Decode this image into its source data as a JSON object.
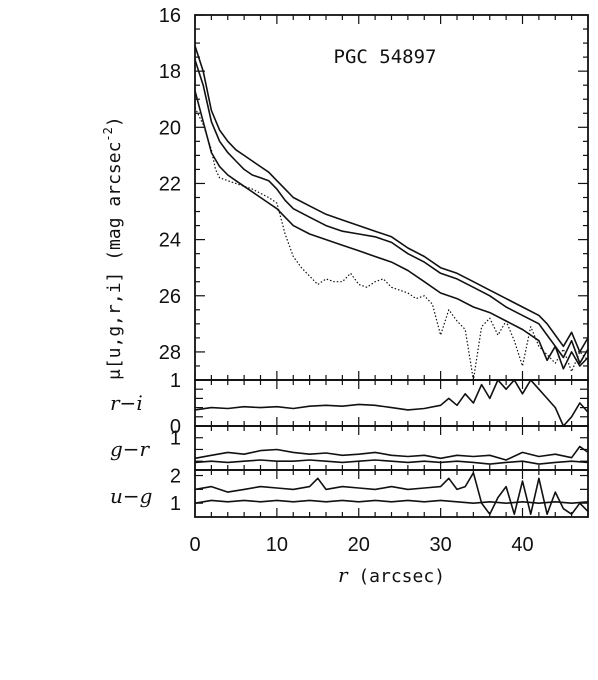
{
  "chart_data": [
    {
      "panel": "surface-brightness",
      "type": "line",
      "title": "PGC 54897",
      "ylabel": "μ[u,g,r,i] (mag arcsec⁻²)",
      "ylabel_main": "μ[u,g,r,i] (mag arcsec",
      "ylabel_sup": "-2",
      "ylabel_close": ")",
      "ylim": [
        29.0,
        16.0
      ],
      "xlim": [
        0,
        48
      ],
      "yticks": [
        "16",
        "18",
        "20",
        "22",
        "24",
        "26",
        "28"
      ],
      "inverted_y": true,
      "series": [
        {
          "style": "dotted",
          "x": [
            0,
            1,
            2,
            2.5,
            3,
            4,
            5,
            7,
            9,
            10,
            11,
            12,
            13,
            14,
            15,
            16,
            17,
            18,
            19,
            20,
            21,
            22,
            23,
            24,
            25,
            26,
            27,
            28,
            29,
            30,
            31,
            32,
            33,
            34,
            35,
            36,
            37,
            38,
            39,
            40,
            41,
            42,
            43,
            44,
            45,
            46,
            47,
            48
          ],
          "y": [
            19.3,
            19.9,
            20.8,
            21.5,
            21.8,
            21.9,
            22.0,
            22.2,
            22.5,
            22.7,
            23.8,
            24.6,
            25.0,
            25.3,
            25.6,
            25.4,
            25.5,
            25.5,
            25.2,
            25.6,
            25.7,
            25.5,
            25.4,
            25.7,
            25.8,
            25.9,
            26.1,
            26.0,
            26.3,
            27.4,
            26.5,
            26.9,
            27.2,
            29.0,
            27.1,
            26.8,
            27.4,
            26.9,
            27.6,
            28.5,
            27.1,
            27.8,
            28.1,
            28.4,
            27.9,
            28.7,
            28.0,
            28.3
          ]
        },
        {
          "style": "solid",
          "x": [
            0,
            1,
            2,
            3,
            4,
            5,
            6,
            7,
            8,
            9,
            10,
            11,
            12,
            14,
            16,
            18,
            20,
            22,
            24,
            26,
            28,
            30,
            32,
            34,
            36,
            38,
            40,
            42,
            43,
            44,
            45,
            46,
            47,
            48
          ],
          "y": [
            18.7,
            19.8,
            20.9,
            21.4,
            21.7,
            21.9,
            22.1,
            22.3,
            22.5,
            22.7,
            22.9,
            23.2,
            23.5,
            23.8,
            24.0,
            24.2,
            24.4,
            24.6,
            24.8,
            25.1,
            25.5,
            25.9,
            26.1,
            26.4,
            26.6,
            26.9,
            27.2,
            27.6,
            28.3,
            27.8,
            28.6,
            28.0,
            28.5,
            28.2
          ]
        },
        {
          "style": "solid",
          "x": [
            0,
            1,
            2,
            3,
            4,
            5,
            6,
            7,
            8,
            9,
            10,
            11,
            12,
            14,
            16,
            18,
            20,
            22,
            24,
            26,
            28,
            30,
            32,
            34,
            36,
            38,
            40,
            42,
            43,
            44,
            45,
            46,
            47,
            48
          ],
          "y": [
            17.6,
            18.5,
            19.8,
            20.5,
            20.9,
            21.2,
            21.5,
            21.7,
            21.8,
            21.9,
            22.2,
            22.6,
            22.9,
            23.2,
            23.5,
            23.7,
            23.8,
            23.9,
            24.1,
            24.5,
            24.8,
            25.2,
            25.4,
            25.7,
            26.0,
            26.4,
            26.7,
            27.0,
            27.4,
            27.8,
            28.2,
            27.6,
            28.4,
            27.9
          ]
        },
        {
          "style": "solid",
          "x": [
            0,
            1,
            2,
            3,
            4,
            5,
            6,
            7,
            8,
            9,
            10,
            11,
            12,
            14,
            16,
            18,
            20,
            22,
            24,
            26,
            28,
            30,
            32,
            34,
            36,
            38,
            40,
            42,
            43,
            44,
            45,
            46,
            47,
            48
          ],
          "y": [
            17.1,
            18.0,
            19.4,
            20.1,
            20.5,
            20.8,
            21.0,
            21.2,
            21.4,
            21.6,
            21.9,
            22.2,
            22.5,
            22.8,
            23.1,
            23.3,
            23.5,
            23.7,
            23.9,
            24.3,
            24.6,
            25.0,
            25.2,
            25.5,
            25.8,
            26.1,
            26.4,
            26.7,
            27.0,
            27.4,
            27.8,
            27.3,
            28.0,
            27.5
          ]
        }
      ]
    },
    {
      "panel": "r-i",
      "type": "line",
      "ylabel": "r−i",
      "ylim": [
        0,
        1
      ],
      "yticks": [
        "1",
        "0"
      ],
      "x": [
        0,
        2,
        4,
        6,
        8,
        10,
        12,
        14,
        16,
        18,
        20,
        22,
        24,
        26,
        28,
        30,
        31,
        32,
        33,
        34,
        35,
        36,
        37,
        38,
        39,
        40,
        41,
        42,
        43,
        44,
        45,
        46,
        47,
        48
      ],
      "y": [
        0.35,
        0.4,
        0.38,
        0.42,
        0.4,
        0.42,
        0.38,
        0.43,
        0.45,
        0.43,
        0.47,
        0.45,
        0.4,
        0.35,
        0.38,
        0.45,
        0.6,
        0.45,
        0.7,
        0.5,
        0.9,
        0.6,
        1.0,
        0.8,
        1.0,
        0.7,
        1.0,
        0.8,
        0.6,
        0.4,
        -0.1,
        0.2,
        0.5,
        0.3
      ]
    },
    {
      "panel": "g-r",
      "type": "line",
      "ylabel": "g−r",
      "ylim": [
        0.45,
        1.2
      ],
      "yticks": [
        "1"
      ],
      "series": [
        {
          "x": [
            0,
            2,
            4,
            6,
            8,
            10,
            12,
            14,
            16,
            18,
            20,
            22,
            24,
            26,
            28,
            30,
            32,
            34,
            36,
            38,
            40,
            42,
            44,
            46,
            47,
            48
          ],
          "y": [
            0.65,
            0.7,
            0.75,
            0.72,
            0.78,
            0.8,
            0.75,
            0.72,
            0.74,
            0.7,
            0.72,
            0.75,
            0.7,
            0.68,
            0.7,
            0.65,
            0.7,
            0.68,
            0.7,
            0.62,
            0.75,
            0.68,
            0.72,
            0.66,
            0.85,
            0.75
          ]
        },
        {
          "x": [
            0,
            2,
            4,
            6,
            8,
            10,
            12,
            14,
            16,
            18,
            20,
            22,
            24,
            26,
            28,
            30,
            32,
            34,
            36,
            38,
            40,
            42,
            44,
            46,
            48
          ],
          "y": [
            0.58,
            0.6,
            0.58,
            0.6,
            0.62,
            0.6,
            0.6,
            0.62,
            0.6,
            0.58,
            0.6,
            0.62,
            0.6,
            0.58,
            0.6,
            0.58,
            0.6,
            0.58,
            0.55,
            0.58,
            0.6,
            0.55,
            0.58,
            0.6,
            0.58
          ]
        }
      ]
    },
    {
      "panel": "u-g",
      "type": "line",
      "ylabel": "u−g",
      "ylim": [
        0.5,
        2.2
      ],
      "yticks": [
        "2",
        "1"
      ],
      "series": [
        {
          "x": [
            0,
            2,
            4,
            6,
            8,
            10,
            12,
            14,
            15,
            16,
            18,
            20,
            22,
            24,
            26,
            28,
            30,
            31,
            32,
            33,
            34,
            35,
            36,
            37,
            38,
            39,
            40,
            41,
            42,
            43,
            44,
            45,
            46,
            47,
            48
          ],
          "y": [
            1.5,
            1.6,
            1.4,
            1.5,
            1.6,
            1.55,
            1.5,
            1.6,
            1.9,
            1.5,
            1.6,
            1.55,
            1.5,
            1.6,
            1.5,
            1.55,
            1.6,
            1.9,
            1.5,
            1.6,
            2.1,
            1.0,
            0.6,
            1.2,
            1.6,
            0.6,
            1.8,
            0.6,
            1.9,
            0.6,
            1.4,
            0.8,
            0.6,
            1.0,
            0.7
          ]
        },
        {
          "x": [
            0,
            2,
            4,
            6,
            8,
            10,
            12,
            14,
            16,
            18,
            20,
            22,
            24,
            26,
            28,
            30,
            32,
            34,
            36,
            38,
            40,
            42,
            44,
            46,
            48
          ],
          "y": [
            1.0,
            1.1,
            1.05,
            1.1,
            1.05,
            1.1,
            1.05,
            1.1,
            1.05,
            1.1,
            1.05,
            1.1,
            1.05,
            1.1,
            1.05,
            1.1,
            1.05,
            1.0,
            1.05,
            1.0,
            1.05,
            1.0,
            1.05,
            1.0,
            1.05
          ]
        }
      ]
    }
  ],
  "xaxis": {
    "ticks": [
      "0",
      "10",
      "20",
      "30",
      "40"
    ],
    "label_var": "r",
    "label_unit": "(arcsec)"
  },
  "panels_labels": {
    "ri": "r−i",
    "gr": "g−r",
    "ug": "u−g"
  }
}
